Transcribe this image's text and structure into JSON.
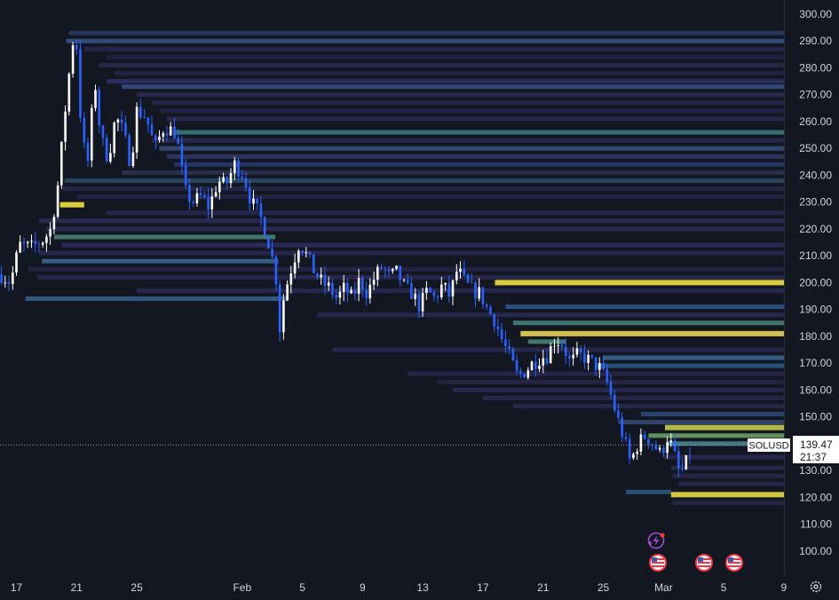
{
  "chart_data": {
    "type": "candlestick",
    "symbol": "SOLUSD",
    "last_price": "139.47",
    "countdown": "21:37",
    "ylim": [
      94,
      304
    ],
    "y_ticks": [
      "300.00",
      "290.00",
      "280.00",
      "270.00",
      "260.00",
      "250.00",
      "240.00",
      "230.00",
      "220.00",
      "210.00",
      "200.00",
      "190.00",
      "180.00",
      "170.00",
      "160.00",
      "150.00",
      "140.00",
      "130.00",
      "120.00",
      "110.00",
      "100.00"
    ],
    "x_ticks": [
      "17",
      "21",
      "25",
      "Feb",
      "5",
      "9",
      "13",
      "17",
      "21",
      "25",
      "Mar",
      "5",
      "9"
    ],
    "x_tick_days": [
      0,
      4,
      8,
      15,
      19,
      23,
      27,
      31,
      35,
      39,
      43,
      47,
      51
    ],
    "price_path": [
      [
        -1,
        203
      ],
      [
        -0.4,
        200
      ],
      [
        0.2,
        214
      ],
      [
        1,
        213
      ],
      [
        1.8,
        216
      ],
      [
        2.3,
        220
      ],
      [
        2.8,
        238
      ],
      [
        3.2,
        262
      ],
      [
        3.6,
        283
      ],
      [
        3.8,
        292
      ],
      [
        4.0,
        288
      ],
      [
        4.3,
        258
      ],
      [
        4.7,
        242
      ],
      [
        5.2,
        276
      ],
      [
        5.6,
        254
      ],
      [
        6.1,
        246
      ],
      [
        6.6,
        262
      ],
      [
        7.1,
        256
      ],
      [
        7.6,
        244
      ],
      [
        8.0,
        264
      ],
      [
        8.6,
        262
      ],
      [
        9.2,
        250
      ],
      [
        9.8,
        258
      ],
      [
        10.6,
        256
      ],
      [
        11.2,
        234
      ],
      [
        11.7,
        230
      ],
      [
        12.3,
        232
      ],
      [
        12.8,
        228
      ],
      [
        13.4,
        238
      ],
      [
        13.9,
        236
      ],
      [
        14.5,
        244
      ],
      [
        15.1,
        240
      ],
      [
        15.6,
        230
      ],
      [
        16.1,
        226
      ],
      [
        16.5,
        220
      ],
      [
        16.9,
        212
      ],
      [
        17.3,
        200
      ],
      [
        17.5,
        183
      ],
      [
        17.8,
        196
      ],
      [
        18.3,
        206
      ],
      [
        18.8,
        215
      ],
      [
        19.3,
        210
      ],
      [
        19.8,
        204
      ],
      [
        20.3,
        200
      ],
      [
        20.8,
        198
      ],
      [
        21.3,
        194
      ],
      [
        21.8,
        198
      ],
      [
        22.3,
        194
      ],
      [
        22.8,
        201
      ],
      [
        23.3,
        196
      ],
      [
        23.8,
        202
      ],
      [
        24.3,
        206
      ],
      [
        24.8,
        202
      ],
      [
        25.3,
        204
      ],
      [
        25.8,
        198
      ],
      [
        26.3,
        196
      ],
      [
        26.8,
        191
      ],
      [
        27.3,
        197
      ],
      [
        27.8,
        194
      ],
      [
        28.3,
        199
      ],
      [
        28.8,
        195
      ],
      [
        29.3,
        205
      ],
      [
        29.8,
        200
      ],
      [
        30.3,
        197
      ],
      [
        30.8,
        196
      ],
      [
        31.3,
        190
      ],
      [
        31.8,
        186
      ],
      [
        32.3,
        178
      ],
      [
        32.8,
        172
      ],
      [
        33.3,
        165
      ],
      [
        33.8,
        167
      ],
      [
        34.3,
        170
      ],
      [
        34.8,
        172
      ],
      [
        35.3,
        173
      ],
      [
        35.8,
        179
      ],
      [
        36.3,
        177
      ],
      [
        36.8,
        170
      ],
      [
        37.3,
        173
      ],
      [
        37.8,
        172
      ],
      [
        38.3,
        170
      ],
      [
        38.8,
        168
      ],
      [
        39.3,
        162
      ],
      [
        39.8,
        152
      ],
      [
        40.3,
        143
      ],
      [
        40.8,
        133
      ],
      [
        41.3,
        140
      ],
      [
        41.8,
        143
      ],
      [
        42.3,
        140
      ],
      [
        42.8,
        136
      ],
      [
        43.3,
        143
      ],
      [
        43.6,
        138
      ],
      [
        44.0,
        130
      ],
      [
        44.3,
        130
      ],
      [
        44.6,
        134
      ],
      [
        44.9,
        139.5
      ]
    ],
    "volume_profile": [
      {
        "price": 293,
        "start": 3.5,
        "end": 52,
        "color": "#2a3a6a"
      },
      {
        "price": 290,
        "start": 3.3,
        "end": 52,
        "color": "#38578a"
      },
      {
        "price": 287,
        "start": 4.5,
        "end": 52,
        "color": "#2a2750"
      },
      {
        "price": 284,
        "start": 6,
        "end": 52,
        "color": "#272345"
      },
      {
        "price": 281,
        "start": 5.5,
        "end": 52,
        "color": "#2b2a52"
      },
      {
        "price": 278,
        "start": 6.5,
        "end": 52,
        "color": "#28244a"
      },
      {
        "price": 275,
        "start": 6,
        "end": 52,
        "color": "#2f3268"
      },
      {
        "price": 273,
        "start": 7,
        "end": 52,
        "color": "#3a4d88"
      },
      {
        "price": 270,
        "start": 8,
        "end": 52,
        "color": "#2c2b55"
      },
      {
        "price": 267,
        "start": 9,
        "end": 52,
        "color": "#2a2650"
      },
      {
        "price": 264,
        "start": 9.5,
        "end": 52,
        "color": "#282449"
      },
      {
        "price": 261,
        "start": 10,
        "end": 52,
        "color": "#2a2a52"
      },
      {
        "price": 256,
        "start": 10.4,
        "end": 52,
        "color": "#3e7e80"
      },
      {
        "price": 253,
        "start": 9,
        "end": 52,
        "color": "#2b2c55"
      },
      {
        "price": 250,
        "start": 9.5,
        "end": 52,
        "color": "#37507a"
      },
      {
        "price": 247,
        "start": 10,
        "end": 52,
        "color": "#2f3a6a"
      },
      {
        "price": 244,
        "start": 10.5,
        "end": 52,
        "color": "#2c3870"
      },
      {
        "price": 241,
        "start": 7,
        "end": 52,
        "color": "#2a3352"
      },
      {
        "price": 238,
        "start": 3.2,
        "end": 52,
        "color": "#2c4a66"
      },
      {
        "price": 235,
        "start": 3,
        "end": 52,
        "color": "#252846"
      },
      {
        "price": 232,
        "start": 4,
        "end": 52,
        "color": "#262649"
      },
      {
        "price": 229,
        "start": 2.9,
        "end": 4.5,
        "color": "#e6d640"
      },
      {
        "price": 226,
        "start": 6,
        "end": 52,
        "color": "#2a2750"
      },
      {
        "price": 223,
        "start": 1.5,
        "end": 52,
        "color": "#2d2b58"
      },
      {
        "price": 220,
        "start": 2,
        "end": 52,
        "color": "#2e2c5a"
      },
      {
        "price": 217,
        "start": 2.5,
        "end": 17.2,
        "color": "#4c8778"
      },
      {
        "price": 214,
        "start": 3,
        "end": 52,
        "color": "#302d60"
      },
      {
        "price": 211,
        "start": 1.5,
        "end": 52,
        "color": "#2c2852"
      },
      {
        "price": 208,
        "start": 1.7,
        "end": 17.4,
        "color": "#3e6a98"
      },
      {
        "price": 205,
        "start": 0.8,
        "end": 52,
        "color": "#2a2648"
      },
      {
        "price": 202,
        "start": 1.4,
        "end": 52,
        "color": "#2b2850"
      },
      {
        "price": 200,
        "start": 31.8,
        "end": 52,
        "color": "#e6d640"
      },
      {
        "price": 197,
        "start": 8,
        "end": 52,
        "color": "#2b2a55"
      },
      {
        "price": 194,
        "start": 0.6,
        "end": 18,
        "color": "#33628a"
      },
      {
        "price": 191,
        "start": 32.5,
        "end": 52,
        "color": "#2e5890"
      },
      {
        "price": 188,
        "start": 20,
        "end": 52,
        "color": "#2b2b56"
      },
      {
        "price": 185,
        "start": 33,
        "end": 52,
        "color": "#48857f"
      },
      {
        "price": 181,
        "start": 33.5,
        "end": 52,
        "color": "#dcc850"
      },
      {
        "price": 178,
        "start": 34,
        "end": 36.5,
        "color": "#4c8878"
      },
      {
        "price": 175,
        "start": 21,
        "end": 52,
        "color": "#2b2a52"
      },
      {
        "price": 172,
        "start": 39,
        "end": 52,
        "color": "#3a6a92"
      },
      {
        "price": 169,
        "start": 38.5,
        "end": 52,
        "color": "#2e5a88"
      },
      {
        "price": 166,
        "start": 26,
        "end": 52,
        "color": "#2a2850"
      },
      {
        "price": 163,
        "start": 28,
        "end": 52,
        "color": "#292749"
      },
      {
        "price": 160,
        "start": 29,
        "end": 52,
        "color": "#2a2a55"
      },
      {
        "price": 157,
        "start": 31,
        "end": 52,
        "color": "#29284e"
      },
      {
        "price": 154,
        "start": 33,
        "end": 52,
        "color": "#2a2a52"
      },
      {
        "price": 151,
        "start": 41.5,
        "end": 52,
        "color": "#2c4a7a"
      },
      {
        "price": 148,
        "start": 40,
        "end": 52,
        "color": "#3a4a78"
      },
      {
        "price": 146,
        "start": 43.1,
        "end": 52,
        "color": "#b8c24c"
      },
      {
        "price": 143,
        "start": 42,
        "end": 52,
        "color": "#70a868"
      },
      {
        "price": 140,
        "start": 43.3,
        "end": 50,
        "color": "#4a8a98"
      },
      {
        "price": 135,
        "start": 43,
        "end": 52,
        "color": "#2c2a52"
      },
      {
        "price": 131,
        "start": 43.5,
        "end": 52,
        "color": "#2b2a50"
      },
      {
        "price": 128,
        "start": 43.6,
        "end": 52,
        "color": "#2a294f"
      },
      {
        "price": 125,
        "start": 44,
        "end": 52,
        "color": "#2a294c"
      },
      {
        "price": 122,
        "start": 40.5,
        "end": 43.5,
        "color": "#2e5a80"
      },
      {
        "price": 121,
        "start": 43.5,
        "end": 52,
        "color": "#dcd040"
      },
      {
        "price": 118,
        "start": 43.6,
        "end": 52,
        "color": "#28294a"
      }
    ]
  }
}
